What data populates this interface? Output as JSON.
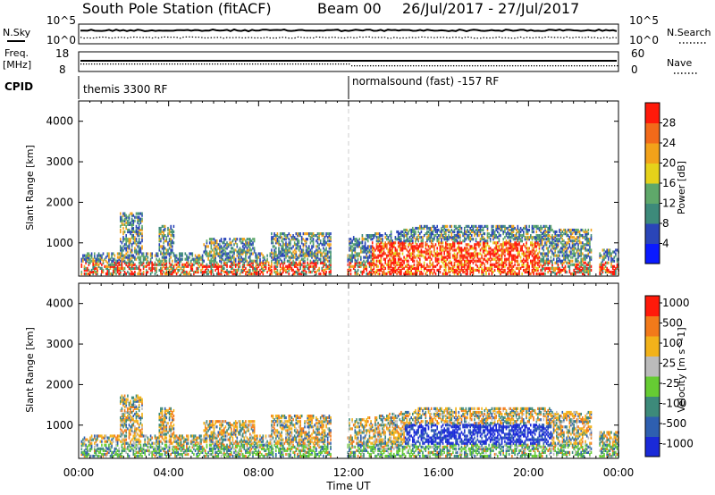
{
  "header": {
    "station": "South Pole Station (fitACF)",
    "beam": "Beam 00",
    "date_range": "26/Jul/2017 - 27/Jul/2017"
  },
  "top_panels": {
    "nsky_label": "N.Sky",
    "nsearch_label": "N.Search",
    "freq_label_1": "Freq.",
    "freq_label_2": "[MHz]",
    "nave_label": "Nave",
    "cpid_label": "CPID",
    "tick_left_top": "10^5",
    "tick_left_bottom": "10^0",
    "tick_right_top": "10^5",
    "tick_right_bottom": "10^0",
    "freq_tick_top": "18",
    "freq_tick_bottom": "8",
    "nave_tick_top": "60",
    "nave_tick_bottom": "0",
    "cpid_segments": [
      {
        "label": "themis 3300 RF",
        "start_hour": 0
      },
      {
        "label": "normalsound (fast) -157 RF",
        "start_hour": 12
      }
    ]
  },
  "chart_data": [
    {
      "type": "heatmap",
      "name": "power",
      "ylabel": "Slant Range [km]",
      "ylim": [
        180,
        4500
      ],
      "yticks": [
        1000,
        2000,
        3000,
        4000
      ],
      "x_range_hours": [
        0,
        24
      ],
      "colorbar": {
        "label": "Power [dB]",
        "range": [
          0,
          32
        ],
        "ticks": [
          "4",
          "8",
          "12",
          "16",
          "20",
          "24",
          "28"
        ],
        "colors": [
          "#0a1aff",
          "#2a45b8",
          "#3d8a7a",
          "#5fa86a",
          "#e6d21a",
          "#f2a21a",
          "#f26a1a",
          "#ff1a0a"
        ]
      }
    },
    {
      "type": "heatmap",
      "name": "velocity",
      "ylabel": "Slant Range [km]",
      "ylim": [
        180,
        4500
      ],
      "yticks": [
        1000,
        2000,
        3000,
        4000
      ],
      "x_range_hours": [
        0,
        24
      ],
      "xlabel": "Time UT",
      "xticks": [
        "00:00",
        "04:00",
        "08:00",
        "12:00",
        "16:00",
        "20:00",
        "00:00"
      ],
      "colorbar": {
        "label": "Velocity [m s^-1]",
        "ticks": [
          "1000",
          "500",
          "100",
          "25",
          "-25",
          "-100",
          "-500",
          "-1000"
        ],
        "colors": [
          "#1a2ad8",
          "#2e5fb0",
          "#3d8a7a",
          "#66cc33",
          "#bbbbbb",
          "#f2b21a",
          "#f27a1a",
          "#ff1a0a"
        ]
      }
    }
  ],
  "colors": {
    "frame": "#000000",
    "noon_marker": "#cccccc"
  }
}
